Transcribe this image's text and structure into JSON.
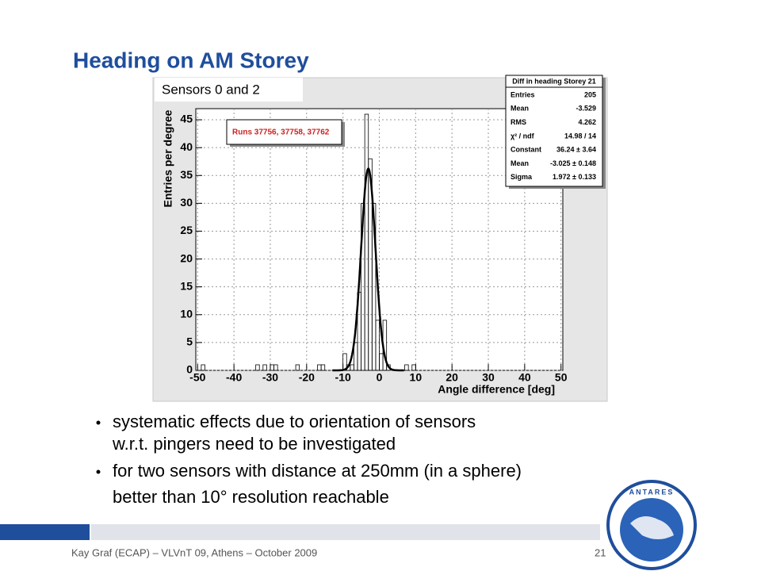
{
  "slide": {
    "title": "Heading on AM Storey",
    "bullets": [
      "systematic effects due to orientation of sensors",
      "w.r.t. pingers need to be investigated",
      "for two sensors with distance at 250mm (in a sphere)",
      "better than 10° resolution reachable"
    ],
    "footer": "Kay Graf (ECAP) – VLVnT 09, Athens – October 2009",
    "page": "21",
    "logo": "ANTARES"
  },
  "chart_data": {
    "type": "histogram",
    "subtitle": "Sensors 0 and 2",
    "legend": "Runs 37756, 37758, 37762",
    "xlabel": "Angle difference [deg]",
    "ylabel": "Entries per degree",
    "color": "#000000",
    "grid": true,
    "bins": [
      -50,
      -49,
      -48,
      -47,
      -46,
      -45,
      -44,
      -43,
      -42,
      -41,
      -40,
      -39,
      -38,
      -37,
      -36,
      -35,
      -34,
      -33,
      -32,
      -31,
      -30,
      -29,
      -28,
      -27,
      -26,
      -25,
      -24,
      -23,
      -22,
      -21,
      -20,
      -19,
      -18,
      -17,
      -16,
      -15,
      -14,
      -13,
      -12,
      -11,
      -10,
      -9,
      -8,
      -7,
      -6,
      -5,
      -4,
      -3,
      -2,
      -1,
      0,
      1,
      2,
      3,
      4,
      5,
      6,
      7,
      8,
      9,
      10,
      11,
      12,
      13,
      14,
      15,
      16,
      17,
      18,
      19,
      20,
      21,
      22,
      23,
      24,
      25,
      26,
      27,
      28,
      29,
      30,
      31,
      32,
      33,
      34,
      35,
      36,
      37,
      38,
      39,
      40,
      41,
      42,
      43,
      44,
      45,
      46,
      47,
      48,
      49,
      50
    ],
    "counts": [
      0,
      1,
      0,
      0,
      0,
      0,
      0,
      0,
      0,
      0,
      0,
      0,
      0,
      0,
      0,
      0,
      1,
      0,
      1,
      0,
      1,
      1,
      0,
      0,
      0,
      0,
      0,
      1,
      0,
      0,
      0,
      0,
      0,
      1,
      1,
      0,
      0,
      0,
      0,
      0,
      3,
      1,
      1,
      5,
      14,
      30,
      46,
      38,
      30,
      9,
      3,
      9,
      1,
      0,
      0,
      0,
      0,
      1,
      0,
      1,
      0,
      0,
      0,
      0,
      0,
      0,
      0,
      0,
      0,
      0,
      0,
      0,
      0,
      0,
      0,
      0,
      0,
      0,
      0,
      0,
      0,
      0,
      0,
      0,
      0,
      0,
      0,
      0,
      0,
      0,
      0,
      0,
      0,
      0,
      0,
      0,
      0,
      0,
      0,
      0
    ],
    "fit": {
      "constant": 36.24,
      "mean": -3.025,
      "sigma": 1.972
    },
    "xlim": [
      -50.5,
      50.5
    ],
    "ylim": [
      0,
      47
    ],
    "xticks": [
      -50,
      -40,
      -30,
      -20,
      -10,
      0,
      10,
      20,
      30,
      40,
      50
    ],
    "yticks": [
      0,
      5,
      10,
      15,
      20,
      25,
      30,
      35,
      40,
      45
    ],
    "stats": {
      "title": "Diff in heading Storey 21",
      "rows": [
        [
          "Entries",
          "205"
        ],
        [
          "Mean",
          "-3.529"
        ],
        [
          "RMS",
          "4.262"
        ],
        [
          "χ² / ndf",
          "14.98 / 14"
        ],
        [
          "Constant",
          "36.24 ± 3.64"
        ],
        [
          "Mean",
          "-3.025 ± 0.148"
        ],
        [
          "Sigma",
          "1.972 ± 0.133"
        ]
      ]
    }
  }
}
